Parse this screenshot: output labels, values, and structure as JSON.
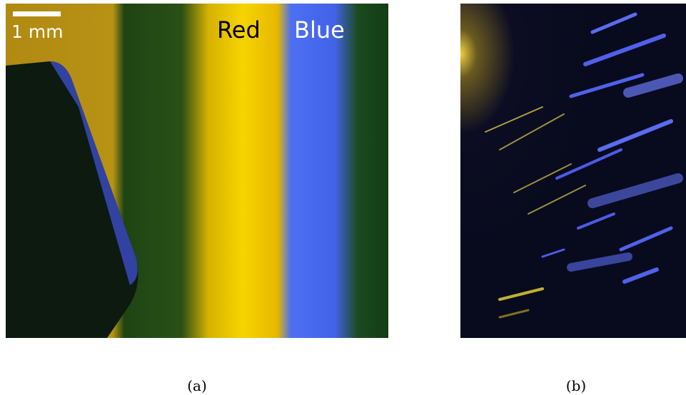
{
  "panels": [
    {
      "caption": "(a)",
      "scale_bar": "1 mm",
      "labels": [
        "Red",
        "Blue"
      ]
    },
    {
      "caption": "(b)"
    }
  ]
}
